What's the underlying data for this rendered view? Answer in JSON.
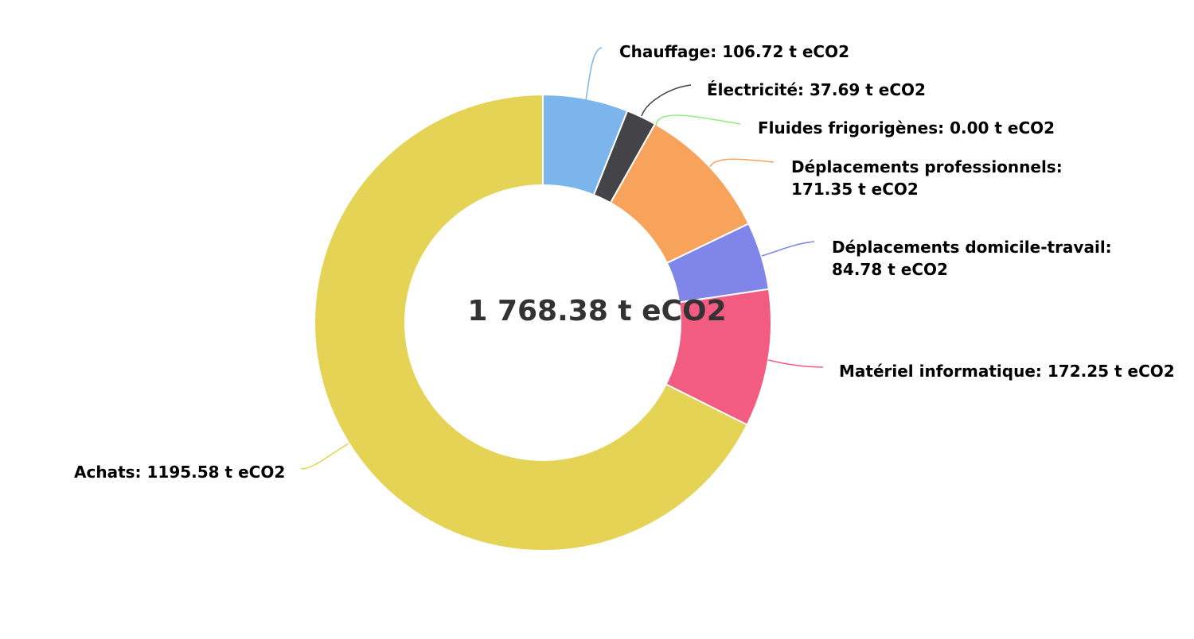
{
  "chart_data": {
    "type": "pie",
    "donut": true,
    "center_label": "1 768.38 t eCO2",
    "slices": [
      {
        "name": "Chauffage",
        "label": "Chauffage: 106.72 t eCO2",
        "value": 106.72,
        "color": "#7cb5ec"
      },
      {
        "name": "Électricité",
        "label": "Électricité: 37.69 t eCO2",
        "value": 37.69,
        "color": "#434348"
      },
      {
        "name": "Fluides frigorigènes",
        "label": "Fluides frigorigènes: 0.00 t eCO2",
        "value": 0.0,
        "color": "#90ed7d"
      },
      {
        "name": "Déplacements professionnels",
        "label": "Déplacements professionnels: 171.35 t eCO2",
        "label_lines": [
          "Déplacements professionnels:",
          "171.35 t eCO2"
        ],
        "value": 171.35,
        "color": "#f7a35c"
      },
      {
        "name": "Déplacements domicile-travail",
        "label": "Déplacements domicile-travail: 84.78 t eCO2",
        "label_lines": [
          "Déplacements domicile-travail:",
          "84.78 t eCO2"
        ],
        "value": 84.78,
        "color": "#8085e9"
      },
      {
        "name": "Matériel informatique",
        "label": "Matériel informatique: 172.25 t eCO2",
        "value": 172.25,
        "color": "#f15c80"
      },
      {
        "name": "Achats",
        "label": "Achats: 1195.58 t eCO2",
        "value": 1195.58,
        "color": "#e4d354"
      }
    ]
  }
}
